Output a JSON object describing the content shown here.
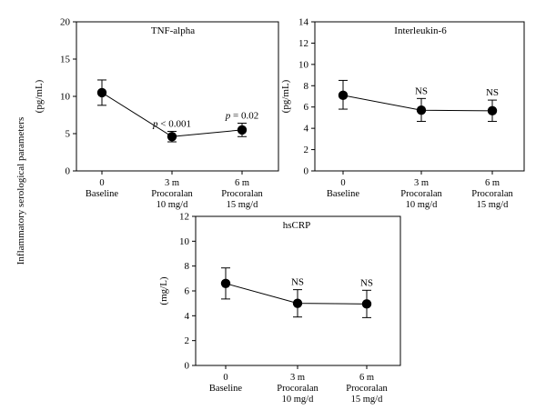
{
  "figure": {
    "shared_ylabel": "Inflammatory serological parameters"
  },
  "chart_data": [
    {
      "type": "line",
      "title": "TNF-alpha",
      "ylabel": "(pg/mL)",
      "xlabel": "",
      "ylim": [
        0,
        20
      ],
      "yticks": [
        0,
        5,
        10,
        15,
        20
      ],
      "x_labels": [
        [
          "0",
          "Baseline"
        ],
        [
          "3 m",
          "Procoralan",
          "10 mg/d"
        ],
        [
          "6 m",
          "Procoralan",
          "15 mg/d"
        ]
      ],
      "series": [
        {
          "values": [
            10.5,
            4.6,
            5.5
          ],
          "err_low": [
            8.8,
            3.9,
            4.6
          ],
          "err_high": [
            12.2,
            5.3,
            6.4
          ]
        }
      ],
      "annotations": [
        {
          "index": 1,
          "prefix": "p",
          "text": " < 0.001"
        },
        {
          "index": 2,
          "prefix": "p",
          "text": " = 0.02"
        }
      ]
    },
    {
      "type": "line",
      "title": "Interleukin-6",
      "ylabel": "(pg/mL)",
      "xlabel": "",
      "ylim": [
        0,
        14
      ],
      "yticks": [
        0,
        2,
        4,
        6,
        8,
        10,
        12,
        14
      ],
      "x_labels": [
        [
          "0",
          "Baseline"
        ],
        [
          "3 m",
          "Procoralan",
          "10 mg/d"
        ],
        [
          "6 m",
          "Procoralan",
          "15 mg/d"
        ]
      ],
      "series": [
        {
          "values": [
            7.1,
            5.7,
            5.65
          ],
          "err_low": [
            5.8,
            4.65,
            4.65
          ],
          "err_high": [
            8.5,
            6.8,
            6.65
          ]
        }
      ],
      "annotations": [
        {
          "index": 1,
          "prefix": "",
          "text": "NS"
        },
        {
          "index": 2,
          "prefix": "",
          "text": "NS"
        }
      ]
    },
    {
      "type": "line",
      "title": "hsCRP",
      "ylabel": "(mg/L)",
      "xlabel": "",
      "ylim": [
        0,
        12
      ],
      "yticks": [
        0,
        2,
        4,
        6,
        8,
        10,
        12
      ],
      "x_labels": [
        [
          "0",
          "Baseline"
        ],
        [
          "3 m",
          "Procoralan",
          "10 mg/d"
        ],
        [
          "6 m",
          "Procoralan",
          "15 mg/d"
        ]
      ],
      "series": [
        {
          "values": [
            6.6,
            5.0,
            4.95
          ],
          "err_low": [
            5.35,
            3.9,
            3.85
          ],
          "err_high": [
            7.85,
            6.1,
            6.05
          ]
        }
      ],
      "annotations": [
        {
          "index": 1,
          "prefix": "",
          "text": "NS"
        },
        {
          "index": 2,
          "prefix": "",
          "text": "NS"
        }
      ]
    }
  ]
}
